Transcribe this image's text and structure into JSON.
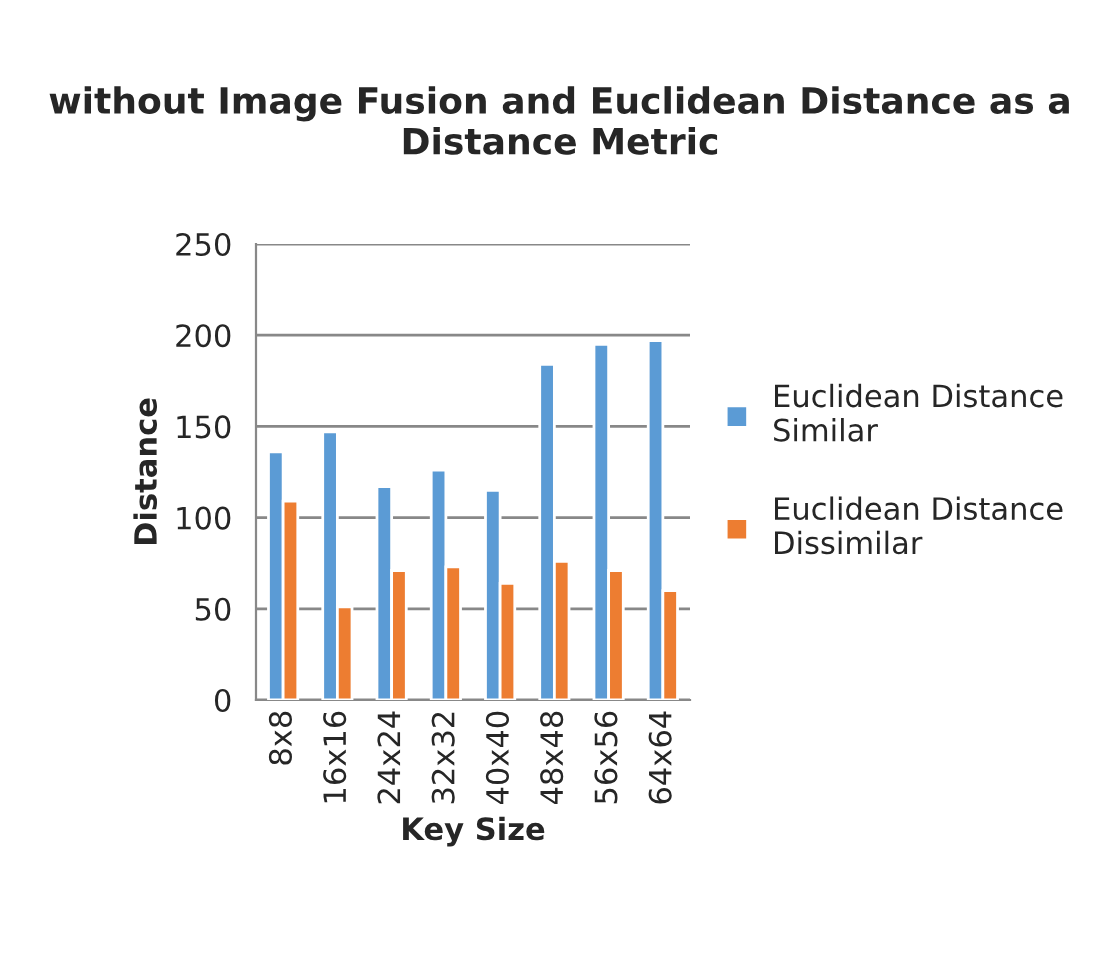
{
  "chart_data": {
    "type": "bar",
    "title": "without Image Fusion and Euclidean Distance as a Distance Metric",
    "xlabel": "Key Size",
    "ylabel": "Distance",
    "categories": [
      "8x8",
      "16x16",
      "24x24",
      "32x32",
      "40x40",
      "48x48",
      "56x56",
      "64x64"
    ],
    "series": [
      {
        "name": "Euclidean Distance Similar",
        "color": "#5b9bd5",
        "values": [
          136,
          147,
          117,
          126,
          115,
          184,
          195,
          197
        ]
      },
      {
        "name": "Euclidean Distance Dissimilar",
        "color": "#ed7d31",
        "values": [
          109,
          51,
          71,
          73,
          64,
          76,
          71,
          60
        ]
      }
    ],
    "ylim": [
      0,
      250
    ],
    "yticks": [
      0,
      50,
      100,
      150,
      200,
      250
    ],
    "grid": "y",
    "legend": "right"
  }
}
